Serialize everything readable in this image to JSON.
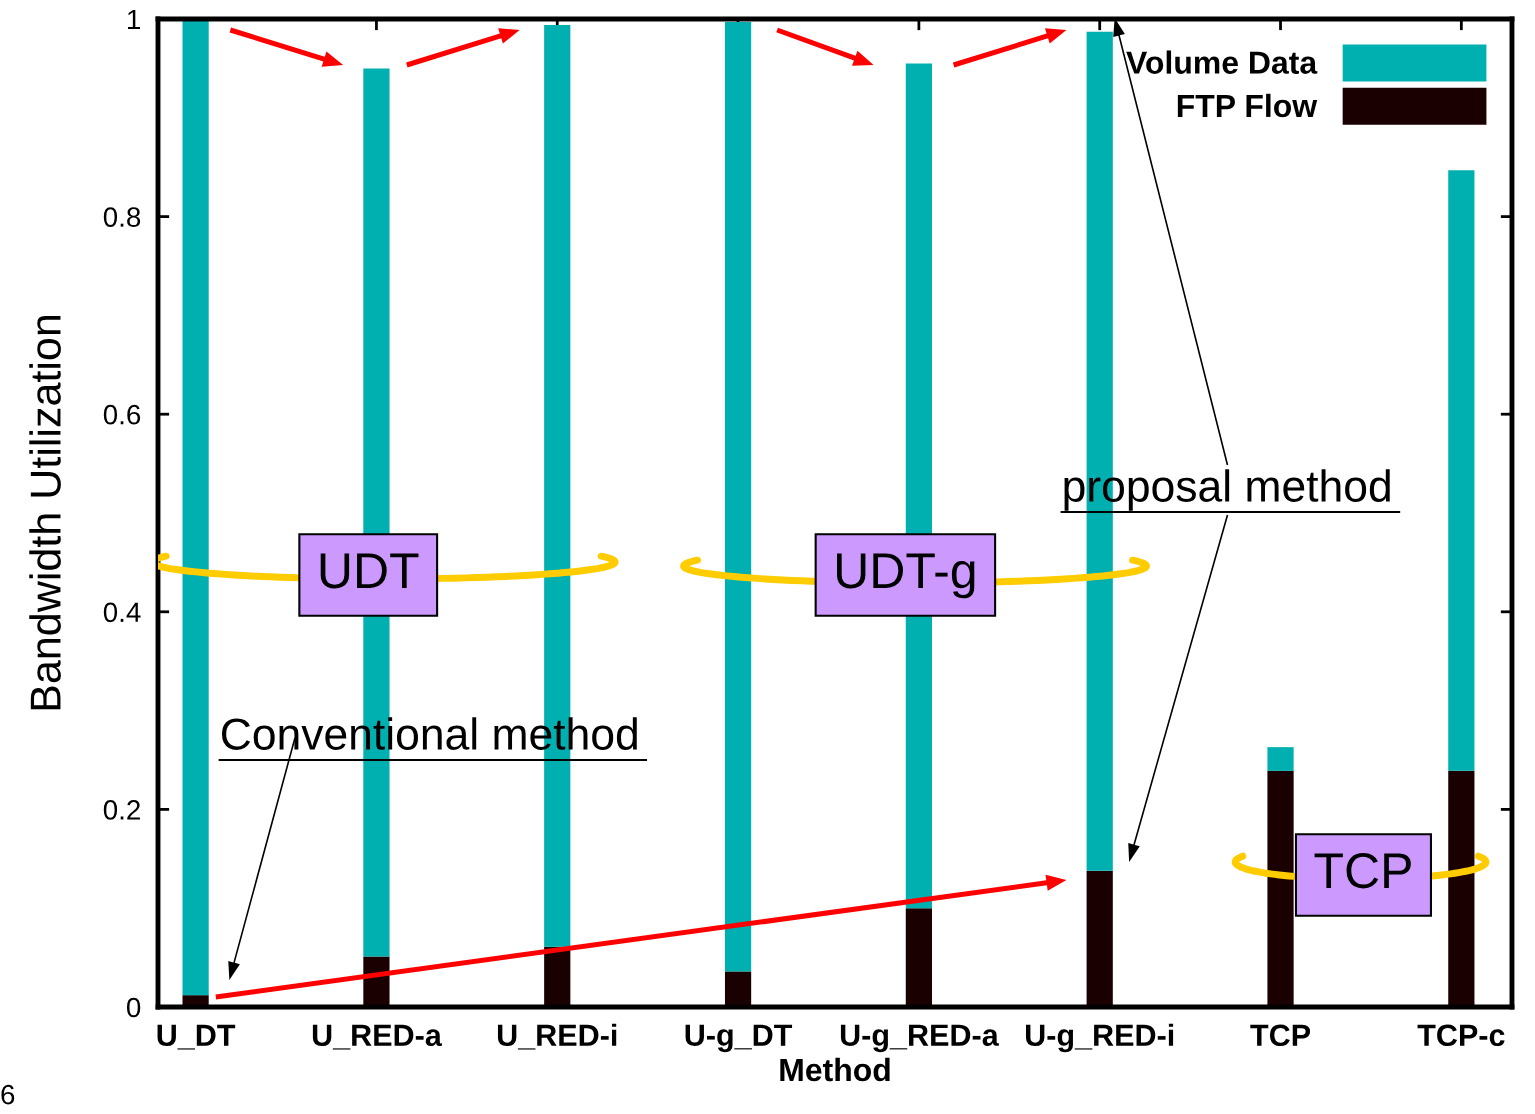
{
  "chart_data": {
    "type": "bar",
    "stacked": true,
    "xlabel": "Method",
    "ylabel": "Bandwidth Utilization",
    "categories": [
      "U_DT",
      "U_RED-a",
      "U_RED-i",
      "U-g_DT",
      "U-g_RED-a",
      "U-g_RED-i",
      "TCP",
      "TCP-c"
    ],
    "series": [
      {
        "name": "FTP Flow",
        "color": "#1a0000",
        "values": [
          0.012,
          0.051,
          0.061,
          0.036,
          0.1,
          0.138,
          0.239,
          0.239
        ]
      },
      {
        "name": "Volume Data",
        "color": "#00b0b0",
        "values": [
          0.988,
          0.899,
          0.933,
          0.961,
          0.855,
          0.849,
          0.024,
          0.608
        ]
      }
    ],
    "ylim": [
      0,
      1
    ],
    "yticks": [
      0,
      0.2,
      0.4,
      0.6,
      0.8,
      1
    ],
    "grid": false,
    "legend": "top right",
    "annotations": [
      "UDT",
      "UDT-g",
      "TCP",
      "Conventional method",
      "proposal method",
      "6"
    ]
  }
}
